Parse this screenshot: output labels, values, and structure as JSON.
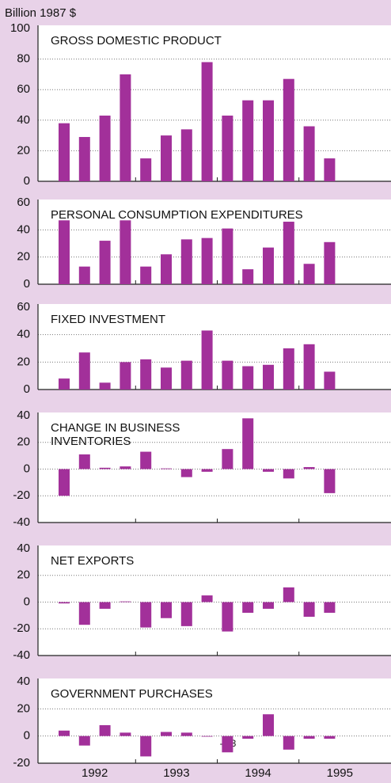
{
  "y_label": "Billion 1987 $",
  "x_groups": [
    "1992",
    "1993",
    "1994",
    "1995"
  ],
  "chart_data": [
    {
      "type": "bar",
      "title": [
        "GROSS DOMESTIC PRODUCT"
      ],
      "categories": [
        null,
        null,
        null,
        null,
        null,
        null,
        null,
        null,
        null,
        null,
        null,
        null,
        null,
        null
      ],
      "values": [
        38,
        29,
        43,
        70,
        15,
        30,
        34,
        78,
        43,
        53,
        53,
        67,
        36,
        15
      ],
      "color": "#a2309a",
      "ylim": [
        0,
        100
      ],
      "yticks": [
        0,
        20,
        40,
        60,
        80,
        100
      ],
      "grid": true
    },
    {
      "type": "bar",
      "title": [
        "PERSONAL CONSUMPTION EXPENDITURES"
      ],
      "categories": [
        null,
        null,
        null,
        null,
        null,
        null,
        null,
        null,
        null,
        null,
        null,
        null,
        null,
        null
      ],
      "values": [
        47,
        13,
        32,
        47,
        13,
        22,
        33,
        34,
        41,
        11,
        27,
        46,
        15,
        31
      ],
      "color": "#a2309a",
      "ylim": [
        0,
        60
      ],
      "yticks": [
        0,
        20,
        40,
        60
      ],
      "grid": true
    },
    {
      "type": "bar",
      "title": [
        "FIXED INVESTMENT"
      ],
      "categories": [
        null,
        null,
        null,
        null,
        null,
        null,
        null,
        null,
        null,
        null,
        null,
        null,
        null,
        null
      ],
      "values": [
        8,
        27,
        5,
        20,
        22,
        16,
        21,
        43,
        21,
        17,
        18,
        30,
        33,
        13
      ],
      "color": "#a2309a",
      "ylim": [
        0,
        60
      ],
      "yticks": [
        0,
        20,
        40,
        60
      ],
      "grid": true
    },
    {
      "type": "bar",
      "title": [
        "CHANGE IN BUSINESS",
        "INVENTORIES"
      ],
      "categories": [
        null,
        null,
        null,
        null,
        null,
        null,
        null,
        null,
        null,
        null,
        null,
        null,
        null,
        null
      ],
      "values": [
        -20,
        11,
        1,
        2,
        13,
        0.5,
        -6,
        -2,
        15,
        38,
        -2,
        -7,
        1.5,
        -18
      ],
      "color": "#a2309a",
      "ylim": [
        -40,
        40
      ],
      "yticks": [
        -40,
        -20,
        0,
        20,
        40
      ],
      "grid": true
    },
    {
      "type": "bar",
      "title": [
        "NET EXPORTS"
      ],
      "categories": [
        null,
        null,
        null,
        null,
        null,
        null,
        null,
        null,
        null,
        null,
        null,
        null,
        null,
        null
      ],
      "values": [
        -1,
        -17,
        -5,
        0.5,
        -19,
        -12,
        -18,
        5,
        -22,
        -8,
        -5,
        11,
        -11,
        -8
      ],
      "color": "#a2309a",
      "ylim": [
        -40,
        40
      ],
      "yticks": [
        -40,
        -20,
        0,
        20,
        40
      ],
      "grid": true
    },
    {
      "type": "bar",
      "title": [
        "GOVERNMENT PURCHASES"
      ],
      "categories": [
        null,
        null,
        null,
        null,
        null,
        null,
        null,
        null,
        null,
        null,
        null,
        null,
        null,
        null
      ],
      "values": [
        4,
        -7,
        8,
        2.5,
        -15,
        3,
        2.5,
        -0.3,
        -12,
        -2,
        16,
        -10,
        -2,
        -2
      ],
      "value_labels": [
        null,
        null,
        null,
        null,
        null,
        null,
        null,
        "-0.3",
        null,
        null,
        null,
        null,
        null,
        null
      ],
      "color": "#a2309a",
      "ylim": [
        -20,
        40
      ],
      "yticks": [
        -20,
        0,
        20,
        40
      ],
      "grid": true
    }
  ]
}
